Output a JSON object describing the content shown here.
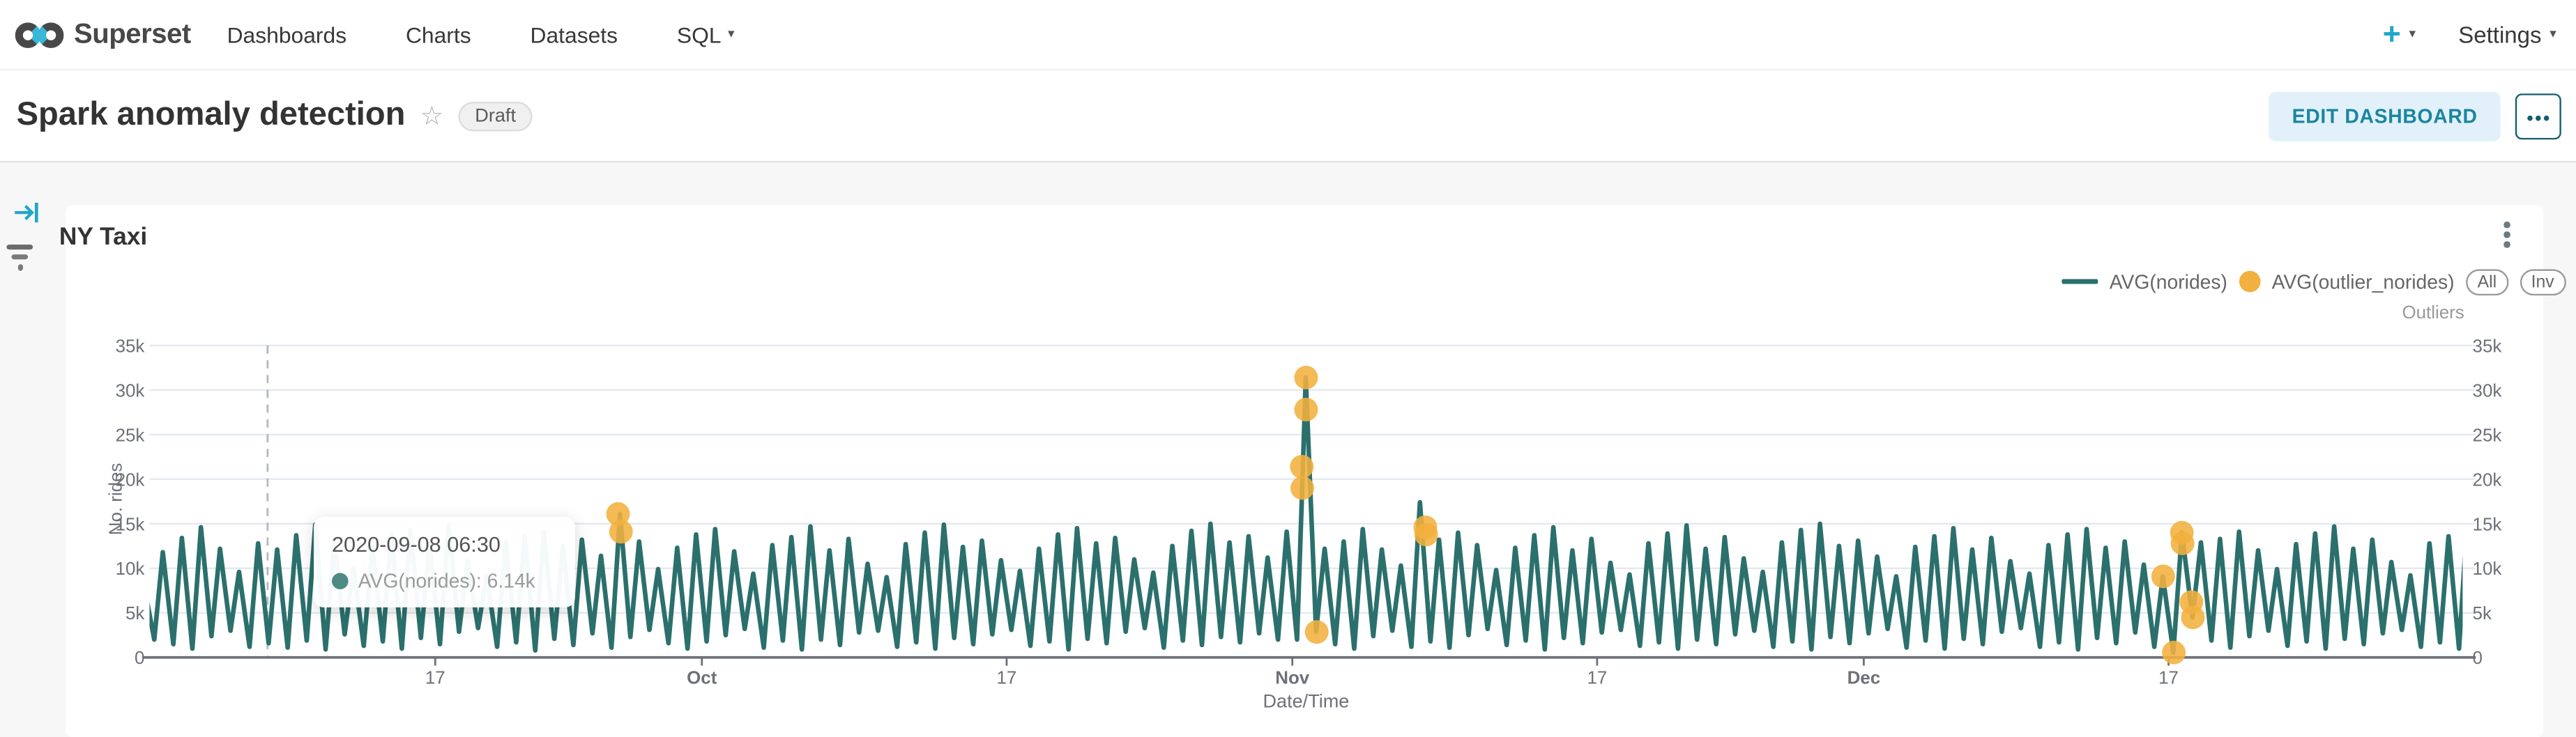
{
  "nav": {
    "brand": "Superset",
    "items": [
      {
        "label": "Dashboards"
      },
      {
        "label": "Charts"
      },
      {
        "label": "Datasets"
      },
      {
        "label": "SQL"
      }
    ],
    "plus_label": "+",
    "settings_label": "Settings"
  },
  "header": {
    "title": "Spark anomaly detection",
    "star_icon": "☆",
    "badge": "Draft",
    "edit_button": "EDIT DASHBOARD",
    "more_label": "●●●"
  },
  "chart": {
    "title": "NY Taxi",
    "legend": [
      {
        "label": "AVG(norides)",
        "type": "line",
        "color": "#2B706C"
      },
      {
        "label": "AVG(outlier_norides)",
        "type": "dot",
        "color": "#F2B03E"
      }
    ],
    "buttons": [
      {
        "label": "All"
      },
      {
        "label": "Inv"
      }
    ],
    "right_axis_title": "Outliers"
  },
  "tooltip": {
    "date": "2020-09-08 06:30",
    "value_line": "AVG(norides): 6.14k"
  },
  "colors": {
    "accent": "#20A7C9",
    "series_line": "#2B706C",
    "outlier": "#F2B03E",
    "gridline": "#E4E8F1",
    "axis": "#6E7079",
    "tick_text": "#6E7079"
  },
  "chart_data": {
    "type": "line",
    "title": "NY Taxi",
    "xlabel": "Date/Time",
    "ylabel": "No. rides",
    "right_label": "Outliers",
    "unit": "k",
    "ylim": [
      0,
      35
    ],
    "y_ticks": [
      {
        "value": 0,
        "label": "0"
      },
      {
        "value": 5,
        "label": "5k"
      },
      {
        "value": 10,
        "label": "10k"
      },
      {
        "value": 15,
        "label": "15k"
      },
      {
        "value": 20,
        "label": "20k"
      },
      {
        "value": 25,
        "label": "25k"
      },
      {
        "value": 30,
        "label": "30k"
      },
      {
        "value": 35,
        "label": "35k"
      }
    ],
    "x_ticks": [
      {
        "label": "17",
        "day": 15,
        "bold": false
      },
      {
        "label": "Oct",
        "day": 29,
        "bold": true
      },
      {
        "label": "17",
        "day": 45,
        "bold": false
      },
      {
        "label": "Nov",
        "day": 60,
        "bold": true
      },
      {
        "label": "17",
        "day": 76,
        "bold": false
      },
      {
        "label": "Dec",
        "day": 90,
        "bold": true
      },
      {
        "label": "17",
        "day": 106,
        "bold": false
      }
    ],
    "x_start_date": "2020-09-02",
    "hover_day": 6.2,
    "series": [
      {
        "name": "AVG(norides)",
        "color": "#2B706C",
        "day_extremes": [
          [
            2.0,
            11.8
          ],
          [
            1.5,
            13.4
          ],
          [
            1.0,
            14.6
          ],
          [
            2.4,
            12.2
          ],
          [
            3.0,
            9.6
          ],
          [
            1.2,
            12.8
          ],
          [
            1.6,
            12.1
          ],
          [
            1.1,
            13.7
          ],
          [
            1.9,
            14.9
          ],
          [
            0.9,
            13.0
          ],
          [
            2.6,
            10.1
          ],
          [
            1.3,
            12.4
          ],
          [
            1.8,
            13.9
          ],
          [
            1.0,
            14.3
          ],
          [
            2.2,
            12.7
          ],
          [
            1.5,
            14.8
          ],
          [
            2.9,
            10.8
          ],
          [
            3.3,
            9.2
          ],
          [
            1.2,
            12.9
          ],
          [
            1.7,
            13.6
          ],
          [
            0.8,
            14.1
          ],
          [
            2.1,
            12.5
          ],
          [
            1.4,
            13.2
          ],
          [
            2.7,
            11.4
          ],
          [
            1.1,
            16.1
          ],
          [
            2.3,
            13.0
          ],
          [
            3.1,
            9.9
          ],
          [
            1.6,
            12.3
          ],
          [
            1.0,
            13.8
          ],
          [
            1.8,
            14.4
          ],
          [
            2.5,
            11.9
          ],
          [
            3.2,
            9.4
          ],
          [
            1.1,
            12.6
          ],
          [
            1.9,
            13.5
          ],
          [
            0.9,
            14.7
          ],
          [
            2.0,
            12.0
          ],
          [
            1.4,
            13.3
          ],
          [
            2.8,
            10.5
          ],
          [
            3.0,
            9.0
          ],
          [
            1.2,
            12.7
          ],
          [
            1.7,
            14.0
          ],
          [
            1.0,
            14.9
          ],
          [
            2.2,
            12.4
          ],
          [
            1.5,
            13.1
          ],
          [
            2.6,
            10.9
          ],
          [
            3.1,
            9.7
          ],
          [
            1.3,
            12.2
          ],
          [
            1.8,
            13.8
          ],
          [
            0.9,
            14.5
          ],
          [
            2.1,
            12.8
          ],
          [
            1.6,
            13.4
          ],
          [
            2.9,
            11.0
          ],
          [
            3.3,
            9.5
          ],
          [
            1.1,
            12.5
          ],
          [
            1.9,
            14.2
          ],
          [
            1.4,
            15.0
          ],
          [
            2.3,
            12.9
          ],
          [
            1.7,
            13.6
          ],
          [
            2.7,
            11.2
          ],
          [
            2.0,
            14.1
          ],
          [
            2.0,
            31.4
          ],
          [
            2.85,
            12.2
          ],
          [
            1.5,
            13.0
          ],
          [
            1.0,
            14.4
          ],
          [
            2.4,
            12.1
          ],
          [
            3.0,
            10.3
          ],
          [
            1.2,
            17.4
          ],
          [
            1.8,
            13.2
          ],
          [
            1.1,
            14.0
          ],
          [
            2.5,
            12.6
          ],
          [
            3.2,
            9.8
          ],
          [
            1.4,
            12.3
          ],
          [
            1.9,
            13.7
          ],
          [
            0.9,
            14.6
          ],
          [
            2.2,
            12.0
          ],
          [
            1.6,
            13.3
          ],
          [
            2.8,
            10.6
          ],
          [
            3.1,
            9.3
          ],
          [
            1.3,
            12.8
          ],
          [
            1.7,
            13.9
          ],
          [
            1.0,
            14.8
          ],
          [
            2.0,
            12.2
          ],
          [
            1.5,
            13.5
          ],
          [
            2.6,
            11.1
          ],
          [
            3.0,
            9.6
          ],
          [
            1.2,
            12.9
          ],
          [
            1.8,
            14.3
          ],
          [
            0.9,
            15.0
          ],
          [
            2.3,
            12.5
          ],
          [
            1.6,
            13.1
          ],
          [
            2.7,
            11.3
          ],
          [
            3.2,
            9.1
          ],
          [
            1.1,
            12.4
          ],
          [
            1.9,
            13.6
          ],
          [
            1.0,
            14.5
          ],
          [
            2.1,
            12.1
          ],
          [
            1.5,
            13.4
          ],
          [
            2.9,
            10.8
          ],
          [
            3.3,
            9.4
          ],
          [
            1.2,
            12.6
          ],
          [
            1.7,
            13.8
          ],
          [
            0.9,
            14.4
          ],
          [
            2.2,
            12.3
          ],
          [
            1.6,
            13.0
          ],
          [
            2.8,
            10.4
          ],
          [
            1.2,
            9.1
          ],
          [
            0.55,
            14.0
          ],
          [
            4.5,
            12.9
          ],
          [
            1.9,
            13.3
          ],
          [
            1.1,
            14.1
          ],
          [
            2.4,
            12.0
          ],
          [
            3.0,
            9.9
          ],
          [
            1.3,
            12.7
          ],
          [
            1.8,
            13.9
          ],
          [
            1.0,
            14.7
          ],
          [
            2.1,
            12.2
          ],
          [
            1.5,
            13.2
          ],
          [
            2.7,
            10.7
          ],
          [
            3.1,
            9.2
          ],
          [
            1.2,
            12.8
          ],
          [
            1.7,
            13.6
          ],
          [
            1.0,
            16.0
          ]
        ],
        "extra_points": [
          [
            60.52,
            19.3
          ]
        ]
      }
    ],
    "outliers": {
      "name": "AVG(outlier_norides)",
      "color": "#F2B03E",
      "points": [
        [
          24.6,
          16.1
        ],
        [
          24.75,
          14.1
        ],
        [
          60.5,
          21.4
        ],
        [
          60.52,
          19.0
        ],
        [
          60.72,
          31.4
        ],
        [
          60.72,
          27.8
        ],
        [
          61.28,
          2.85
        ],
        [
          66.98,
          14.6
        ],
        [
          67.03,
          13.8
        ],
        [
          105.72,
          9.1
        ],
        [
          106.28,
          0.55
        ],
        [
          106.7,
          14.0
        ],
        [
          106.74,
          12.8
        ],
        [
          107.2,
          6.2
        ],
        [
          107.28,
          4.5
        ]
      ]
    }
  }
}
